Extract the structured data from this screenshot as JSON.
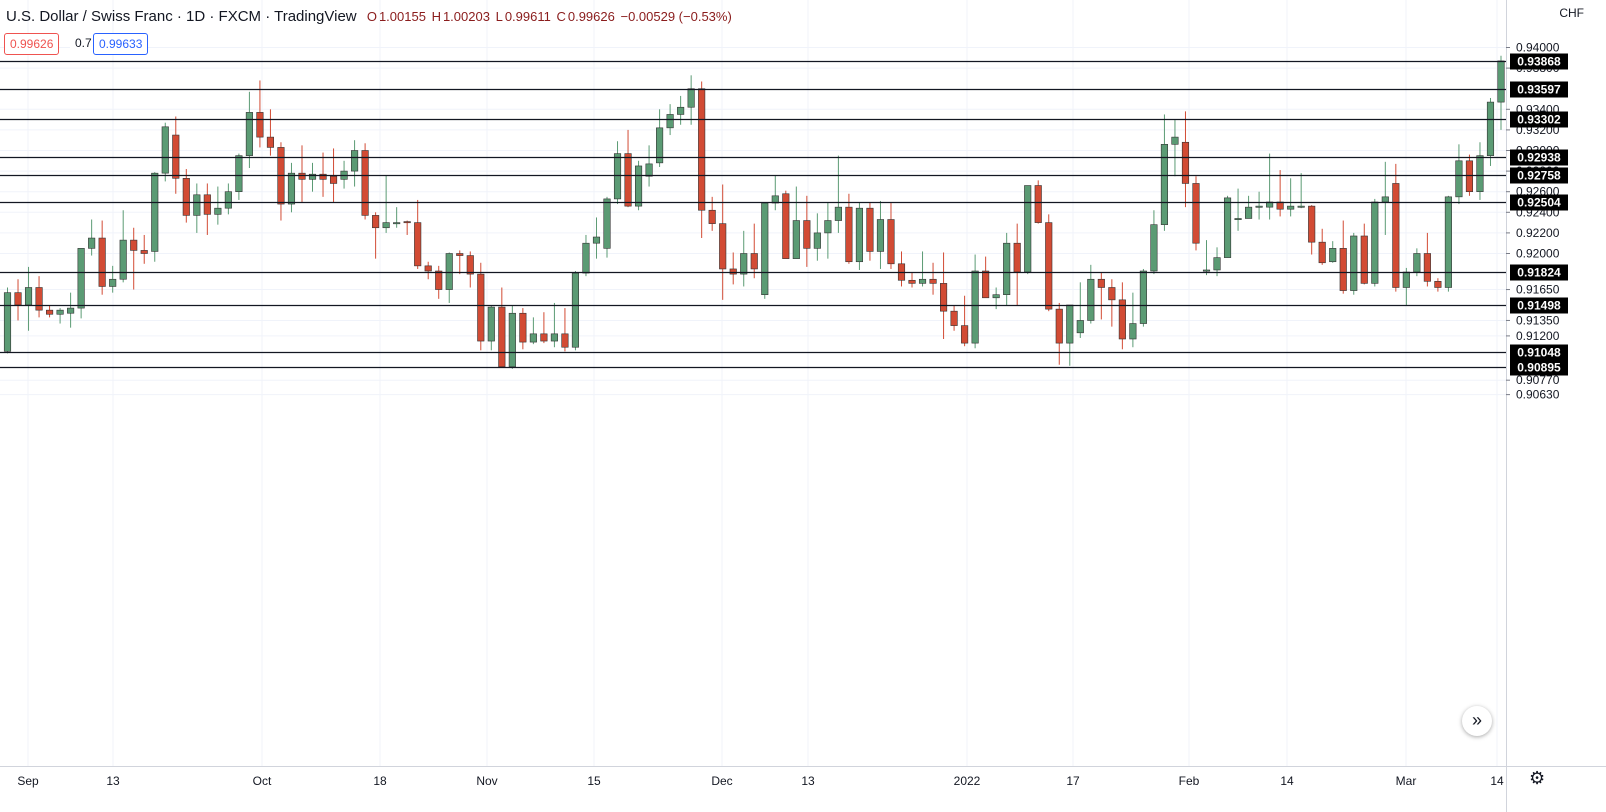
{
  "header": {
    "symbol": "U.S. Dollar / Swiss Franc · 1D · FXCM · TradingView",
    "open_label": "O",
    "open": "1.00155",
    "high_label": "H",
    "high": "1.00203",
    "low_label": "L",
    "low": "0.99611",
    "close_label": "C",
    "close": "0.99626",
    "change": "−0.00529 (−0.53%)"
  },
  "quote": {
    "sell": "0.99626",
    "spread": "0.7",
    "buy": "0.99633"
  },
  "currency": "CHF",
  "colors": {
    "up": "#5b9b74",
    "down": "#d24b34",
    "grid": "#f0f3fa",
    "line": "#131722"
  },
  "icons": {
    "scroll": "double-chevron-right-icon",
    "settings": "gear-icon"
  },
  "chart_data": {
    "type": "candlestick",
    "y_tick_labels": [
      "0.94000",
      "0.93800",
      "0.93400",
      "0.93200",
      "0.93000",
      "0.92800",
      "0.92600",
      "0.92400",
      "0.92200",
      "0.92000",
      "0.91650",
      "0.91350",
      "0.91200",
      "0.90770",
      "0.90630"
    ],
    "x_tick_labels": [
      "Sep",
      "13",
      "Oct",
      "18",
      "Nov",
      "15",
      "Dec",
      "13",
      "2022",
      "17",
      "Feb",
      "14",
      "Mar",
      "14"
    ],
    "horizontal_levels": [
      "0.93868",
      "0.93597",
      "0.93302",
      "0.92938",
      "0.92758",
      "0.92504",
      "0.91824",
      "0.91498",
      "0.91048",
      "0.90895"
    ],
    "candles_ohlc": [
      [
        0.9105,
        0.9167,
        0.9103,
        0.9162
      ],
      [
        0.9162,
        0.9175,
        0.9135,
        0.915
      ],
      [
        0.915,
        0.9187,
        0.9125,
        0.9167
      ],
      [
        0.9167,
        0.9178,
        0.9138,
        0.9145
      ],
      [
        0.9145,
        0.915,
        0.9138,
        0.9141
      ],
      [
        0.9141,
        0.9147,
        0.9132,
        0.9145
      ],
      [
        0.9142,
        0.9162,
        0.9128,
        0.9147
      ],
      [
        0.9147,
        0.9197,
        0.9137,
        0.9205
      ],
      [
        0.9205,
        0.9233,
        0.9198,
        0.9215
      ],
      [
        0.9215,
        0.9232,
        0.916,
        0.9168
      ],
      [
        0.9168,
        0.9188,
        0.9162,
        0.9175
      ],
      [
        0.9175,
        0.9242,
        0.9172,
        0.9213
      ],
      [
        0.9213,
        0.9225,
        0.9165,
        0.9203
      ],
      [
        0.9203,
        0.9218,
        0.919,
        0.92
      ],
      [
        0.9202,
        0.9279,
        0.9192,
        0.9278
      ],
      [
        0.9278,
        0.9327,
        0.927,
        0.9323
      ],
      [
        0.9315,
        0.9333,
        0.9258,
        0.9273
      ],
      [
        0.9273,
        0.9282,
        0.923,
        0.9237
      ],
      [
        0.9237,
        0.9268,
        0.922,
        0.9257
      ],
      [
        0.9257,
        0.9268,
        0.9218,
        0.9238
      ],
      [
        0.9238,
        0.9265,
        0.9228,
        0.9244
      ],
      [
        0.9244,
        0.9268,
        0.9238,
        0.926
      ],
      [
        0.926,
        0.9297,
        0.9252,
        0.9295
      ],
      [
        0.9295,
        0.9357,
        0.9283,
        0.9337
      ],
      [
        0.9337,
        0.9368,
        0.9303,
        0.9313
      ],
      [
        0.9313,
        0.934,
        0.9295,
        0.9303
      ],
      [
        0.9303,
        0.9308,
        0.9232,
        0.9248
      ],
      [
        0.9248,
        0.9288,
        0.924,
        0.9278
      ],
      [
        0.9278,
        0.9305,
        0.925,
        0.9272
      ],
      [
        0.9272,
        0.9288,
        0.926,
        0.9277
      ],
      [
        0.9277,
        0.9298,
        0.9255,
        0.9272
      ],
      [
        0.9275,
        0.9302,
        0.925,
        0.9268
      ],
      [
        0.9272,
        0.929,
        0.9263,
        0.928
      ],
      [
        0.928,
        0.931,
        0.9265,
        0.93
      ],
      [
        0.93,
        0.9307,
        0.9233,
        0.9237
      ],
      [
        0.9237,
        0.924,
        0.9195,
        0.9225
      ],
      [
        0.9225,
        0.9276,
        0.922,
        0.923
      ],
      [
        0.923,
        0.9245,
        0.9225,
        0.923
      ],
      [
        0.9231,
        0.9232,
        0.9218,
        0.923
      ],
      [
        0.923,
        0.9252,
        0.9185,
        0.9188
      ],
      [
        0.9188,
        0.9192,
        0.9175,
        0.9183
      ],
      [
        0.9183,
        0.9188,
        0.9156,
        0.9165
      ],
      [
        0.9165,
        0.9201,
        0.9152,
        0.92
      ],
      [
        0.92,
        0.9203,
        0.918,
        0.9198
      ],
      [
        0.9198,
        0.9202,
        0.9167,
        0.918
      ],
      [
        0.918,
        0.9191,
        0.9106,
        0.9115
      ],
      [
        0.9115,
        0.915,
        0.9106,
        0.9148
      ],
      [
        0.9148,
        0.9167,
        0.9089,
        0.909
      ],
      [
        0.909,
        0.915,
        0.9088,
        0.9142
      ],
      [
        0.9142,
        0.9147,
        0.9107,
        0.9114
      ],
      [
        0.9114,
        0.9138,
        0.9112,
        0.9122
      ],
      [
        0.9122,
        0.9143,
        0.9113,
        0.9115
      ],
      [
        0.9115,
        0.9152,
        0.9109,
        0.9122
      ],
      [
        0.9122,
        0.9147,
        0.9105,
        0.9109
      ],
      [
        0.9109,
        0.9183,
        0.9106,
        0.9181
      ],
      [
        0.9181,
        0.9218,
        0.9178,
        0.921
      ],
      [
        0.921,
        0.9235,
        0.9195,
        0.9216
      ],
      [
        0.9205,
        0.9255,
        0.9196,
        0.9253
      ],
      [
        0.9253,
        0.9309,
        0.9248,
        0.9297
      ],
      [
        0.9297,
        0.932,
        0.9245,
        0.9246
      ],
      [
        0.9246,
        0.929,
        0.9242,
        0.9285
      ],
      [
        0.9275,
        0.9305,
        0.9265,
        0.9287
      ],
      [
        0.9288,
        0.934,
        0.9284,
        0.9322
      ],
      [
        0.9322,
        0.9345,
        0.9315,
        0.9335
      ],
      [
        0.9335,
        0.9353,
        0.9325,
        0.9342
      ],
      [
        0.9342,
        0.9373,
        0.9325,
        0.936
      ],
      [
        0.936,
        0.9367,
        0.9215,
        0.9242
      ],
      [
        0.9242,
        0.9255,
        0.9222,
        0.9229
      ],
      [
        0.9229,
        0.9267,
        0.9155,
        0.9185
      ],
      [
        0.9185,
        0.9201,
        0.917,
        0.918
      ],
      [
        0.918,
        0.9222,
        0.9168,
        0.92
      ],
      [
        0.92,
        0.9229,
        0.9176,
        0.9185
      ],
      [
        0.916,
        0.925,
        0.9156,
        0.9249
      ],
      [
        0.9249,
        0.9276,
        0.9242,
        0.9256
      ],
      [
        0.9258,
        0.9261,
        0.9212,
        0.9195
      ],
      [
        0.9195,
        0.9265,
        0.9195,
        0.9232
      ],
      [
        0.9232,
        0.9256,
        0.9187,
        0.9205
      ],
      [
        0.9205,
        0.9239,
        0.9193,
        0.922
      ],
      [
        0.922,
        0.925,
        0.9195,
        0.9232
      ],
      [
        0.9232,
        0.9295,
        0.922,
        0.9245
      ],
      [
        0.9245,
        0.9258,
        0.919,
        0.9192
      ],
      [
        0.9192,
        0.925,
        0.9184,
        0.9244
      ],
      [
        0.9244,
        0.925,
        0.9193,
        0.9202
      ],
      [
        0.9202,
        0.9251,
        0.9185,
        0.9233
      ],
      [
        0.9233,
        0.9249,
        0.9185,
        0.919
      ],
      [
        0.919,
        0.9202,
        0.9168,
        0.9174
      ],
      [
        0.9174,
        0.9182,
        0.9167,
        0.9171
      ],
      [
        0.9171,
        0.9202,
        0.9168,
        0.9175
      ],
      [
        0.9175,
        0.9191,
        0.916,
        0.9171
      ],
      [
        0.9171,
        0.9201,
        0.9117,
        0.9144
      ],
      [
        0.9144,
        0.915,
        0.9125,
        0.913
      ],
      [
        0.913,
        0.9159,
        0.911,
        0.9113
      ],
      [
        0.9113,
        0.9199,
        0.9108,
        0.9183
      ],
      [
        0.9183,
        0.9197,
        0.9157,
        0.9157
      ],
      [
        0.9157,
        0.9167,
        0.9146,
        0.916
      ],
      [
        0.916,
        0.922,
        0.915,
        0.921
      ],
      [
        0.921,
        0.9229,
        0.915,
        0.9182
      ],
      [
        0.9182,
        0.9266,
        0.918,
        0.9266
      ],
      [
        0.9266,
        0.9271,
        0.9229,
        0.923
      ],
      [
        0.923,
        0.9238,
        0.9144,
        0.9146
      ],
      [
        0.9146,
        0.9152,
        0.9092,
        0.9113
      ],
      [
        0.9113,
        0.915,
        0.9091,
        0.915
      ],
      [
        0.9123,
        0.9172,
        0.9118,
        0.9135
      ],
      [
        0.9135,
        0.9189,
        0.9132,
        0.9175
      ],
      [
        0.9175,
        0.9182,
        0.9136,
        0.9167
      ],
      [
        0.9167,
        0.9175,
        0.9129,
        0.9155
      ],
      [
        0.9155,
        0.9172,
        0.9107,
        0.9117
      ],
      [
        0.9117,
        0.9162,
        0.9109,
        0.9132
      ],
      [
        0.9132,
        0.9185,
        0.9129,
        0.9183
      ],
      [
        0.9183,
        0.9242,
        0.918,
        0.9228
      ],
      [
        0.9228,
        0.9335,
        0.9222,
        0.9306
      ],
      [
        0.9306,
        0.933,
        0.9275,
        0.9313
      ],
      [
        0.9308,
        0.9338,
        0.9245,
        0.9268
      ],
      [
        0.9268,
        0.9275,
        0.9203,
        0.921
      ],
      [
        0.9184,
        0.9213,
        0.9179,
        0.9184
      ],
      [
        0.9184,
        0.9206,
        0.9178,
        0.9196
      ],
      [
        0.9196,
        0.9256,
        0.9196,
        0.9254
      ],
      [
        0.9233,
        0.9263,
        0.9222,
        0.9234
      ],
      [
        0.9234,
        0.9256,
        0.9234,
        0.9245
      ],
      [
        0.9245,
        0.926,
        0.9233,
        0.9246
      ],
      [
        0.9245,
        0.9297,
        0.9233,
        0.925
      ],
      [
        0.925,
        0.9281,
        0.9236,
        0.9243
      ],
      [
        0.9243,
        0.9273,
        0.9236,
        0.9246
      ],
      [
        0.9246,
        0.9278,
        0.9244,
        0.9246
      ],
      [
        0.9246,
        0.9247,
        0.9199,
        0.9211
      ],
      [
        0.9211,
        0.9224,
        0.9189,
        0.9191
      ],
      [
        0.9192,
        0.9212,
        0.9191,
        0.9205
      ],
      [
        0.9205,
        0.9232,
        0.9161,
        0.9164
      ],
      [
        0.9164,
        0.922,
        0.916,
        0.9217
      ],
      [
        0.9217,
        0.9229,
        0.917,
        0.9171
      ],
      [
        0.9171,
        0.9253,
        0.9168,
        0.925
      ],
      [
        0.925,
        0.9289,
        0.9218,
        0.9255
      ],
      [
        0.9268,
        0.9287,
        0.9163,
        0.9167
      ],
      [
        0.9167,
        0.9186,
        0.915,
        0.9182
      ],
      [
        0.9182,
        0.9205,
        0.9178,
        0.92
      ],
      [
        0.92,
        0.922,
        0.9168,
        0.9173
      ],
      [
        0.9173,
        0.9176,
        0.9163,
        0.9167
      ],
      [
        0.9167,
        0.9256,
        0.9163,
        0.9255
      ],
      [
        0.9255,
        0.9306,
        0.9248,
        0.929
      ],
      [
        0.929,
        0.9296,
        0.9256,
        0.926
      ],
      [
        0.926,
        0.9308,
        0.9252,
        0.9295
      ],
      [
        0.9295,
        0.9351,
        0.9285,
        0.9347
      ],
      [
        0.9347,
        0.9392,
        0.932,
        0.9387
      ]
    ]
  }
}
